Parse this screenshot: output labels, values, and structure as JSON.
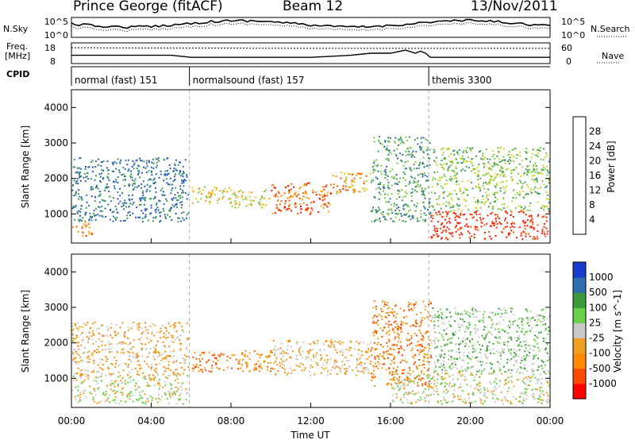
{
  "header": {
    "station": "Prince George (fitACF)",
    "beam": "Beam 12",
    "date": "13/Nov/2011"
  },
  "side_labels": {
    "n_sky": "N.Sky",
    "n_search": "N.Search",
    "freq": "Freq.",
    "freq_unit": "[MHz]",
    "nave": "Nave",
    "cpid": "CPID"
  },
  "colors": {
    "power": [
      "#0000ff",
      "#2a52c8",
      "#2f6fa0",
      "#3c9a5a",
      "#7cc84a",
      "#d4d42a",
      "#ff9c00",
      "#ff5500",
      "#ff1a00"
    ],
    "velocity": [
      "#ff0000",
      "#ff4a00",
      "#ff8a00",
      "#f0a020",
      "#c8c8c8",
      "#6ad04a",
      "#3c9a3c",
      "#2f6fb0",
      "#1a3ccc"
    ]
  },
  "chart_data": [
    {
      "type": "line",
      "panel": "noise",
      "series": [
        {
          "name": "N.Sky"
        },
        {
          "name": "N.Search"
        }
      ],
      "y_ticks_left": [
        "10^5",
        "10^0"
      ],
      "y_ticks_right": [
        "10^5",
        "10^0"
      ],
      "xlim": [
        "00:00",
        "00:00"
      ]
    },
    {
      "type": "line",
      "panel": "frequency",
      "series": [
        {
          "name": "Freq.",
          "x": [
            "00:00",
            "01:00",
            "02:00",
            "03:00",
            "04:00",
            "05:00",
            "06:00",
            "07:00",
            "08:00",
            "09:00",
            "10:00",
            "11:00",
            "12:00",
            "13:00",
            "14:00",
            "15:00",
            "16:00",
            "16:45",
            "17:15",
            "17:30",
            "17:45",
            "18:00",
            "19:00",
            "20:00",
            "21:00",
            "22:00",
            "23:00",
            "24:00"
          ],
          "values": [
            12,
            12,
            12,
            12,
            12,
            12,
            11,
            11,
            11,
            11,
            11,
            11,
            11,
            11.5,
            12,
            13,
            13,
            14.5,
            13,
            14,
            13,
            11,
            11,
            11,
            11,
            11,
            11,
            11
          ]
        },
        {
          "name": "Nave",
          "x": [
            "00:00",
            "06:00",
            "12:00",
            "18:00",
            "24:00"
          ],
          "values": [
            46,
            45,
            44,
            44,
            44
          ]
        }
      ],
      "y_ticks_left": [
        "18",
        "8"
      ],
      "y_ticks_right": [
        "60",
        "0"
      ]
    },
    {
      "type": "table",
      "panel": "cpid",
      "segments": [
        {
          "label": "normal (fast) 151",
          "start": "00:00",
          "end": "05:55"
        },
        {
          "label": "normalsound (fast) 157",
          "start": "05:55",
          "end": "17:55"
        },
        {
          "label": "themis 3300",
          "start": "17:55",
          "end": "24:00"
        }
      ]
    },
    {
      "type": "heatmap",
      "panel": "power",
      "ylabel": "Slant Range [km]",
      "ylim": [
        180,
        4500
      ],
      "y_ticks": [
        1000,
        2000,
        3000,
        4000
      ],
      "colorbar_label": "Power [dB]",
      "colorbar_ticks": [
        4,
        8,
        12,
        16,
        20,
        24,
        28
      ],
      "colorbar_range": [
        0,
        32
      ],
      "scatter_regions": [
        {
          "start": "00:00",
          "end": "05:50",
          "range_from": 800,
          "range_to": 2600,
          "level": 2
        },
        {
          "start": "00:00",
          "end": "01:00",
          "range_from": 400,
          "range_to": 800,
          "level": 7
        },
        {
          "start": "06:00",
          "end": "08:00",
          "range_from": 1300,
          "range_to": 1800,
          "level": 5
        },
        {
          "start": "08:00",
          "end": "10:00",
          "range_from": 1200,
          "range_to": 1700,
          "level": 5
        },
        {
          "start": "10:00",
          "end": "13:00",
          "range_from": 1000,
          "range_to": 1900,
          "level": 7
        },
        {
          "start": "13:00",
          "end": "15:00",
          "range_from": 1600,
          "range_to": 2200,
          "level": 6
        },
        {
          "start": "15:00",
          "end": "18:00",
          "range_from": 800,
          "range_to": 3200,
          "level": 3
        },
        {
          "start": "18:00",
          "end": "24:00",
          "range_from": 300,
          "range_to": 1100,
          "level": 8
        },
        {
          "start": "18:00",
          "end": "24:00",
          "range_from": 1100,
          "range_to": 2900,
          "level": 4
        }
      ]
    },
    {
      "type": "heatmap",
      "panel": "velocity",
      "xlabel": "Time UT",
      "ylabel": "Slant Range [km]",
      "ylim": [
        180,
        4500
      ],
      "y_ticks": [
        1000,
        2000,
        3000,
        4000
      ],
      "x_ticks": [
        "00:00",
        "04:00",
        "08:00",
        "12:00",
        "16:00",
        "20:00",
        "00:00"
      ],
      "colorbar_label": "Velocity [m s^-1]",
      "colorbar_ticks": [
        -1000,
        -500,
        -100,
        -25,
        25,
        100,
        500,
        1000
      ],
      "scatter_regions": [
        {
          "start": "00:00",
          "end": "05:50",
          "range_from": 300,
          "range_to": 1100,
          "level": 4
        },
        {
          "start": "00:00",
          "end": "05:50",
          "range_from": 1100,
          "range_to": 2600,
          "level": 3
        },
        {
          "start": "06:00",
          "end": "10:00",
          "range_from": 1200,
          "range_to": 1800,
          "level": 2
        },
        {
          "start": "10:00",
          "end": "15:00",
          "range_from": 1100,
          "range_to": 2100,
          "level": 3
        },
        {
          "start": "15:00",
          "end": "18:00",
          "range_from": 800,
          "range_to": 3200,
          "level": 2
        },
        {
          "start": "16:00",
          "end": "24:00",
          "range_from": 300,
          "range_to": 1200,
          "level": 4
        },
        {
          "start": "18:00",
          "end": "24:00",
          "range_from": 1200,
          "range_to": 3000,
          "level": 5
        }
      ]
    }
  ]
}
